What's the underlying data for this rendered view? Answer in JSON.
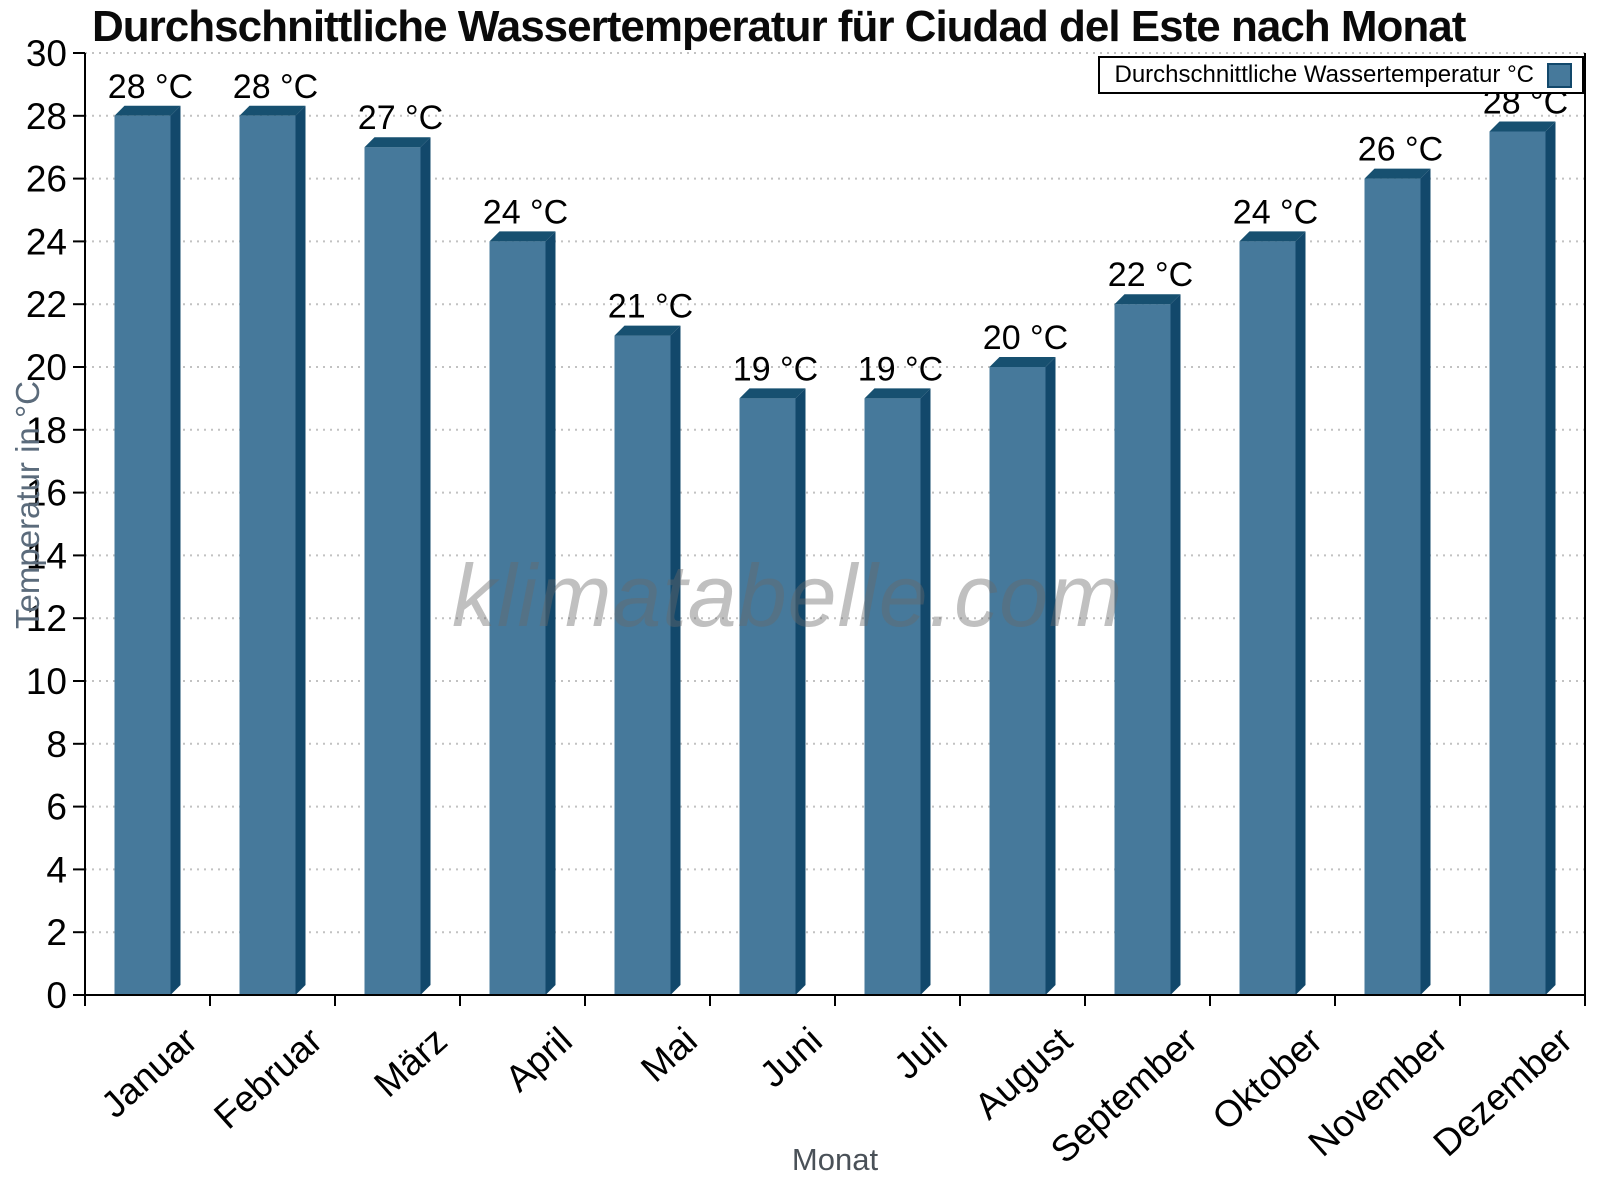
{
  "chart_data": {
    "type": "bar",
    "title": "Durchschnittliche Wassertemperatur für Ciudad del Este nach Monat",
    "xlabel": "Monat",
    "ylabel": "Temperatur in °C",
    "legend": "Durchschnittliche Wassertemperatur °C",
    "legend_position": "top-right",
    "watermark": "klimatabelle.com",
    "categories": [
      "Januar",
      "Februar",
      "März",
      "April",
      "Mai",
      "Juni",
      "Juli",
      "August",
      "September",
      "Oktober",
      "November",
      "Dezember"
    ],
    "values": [
      28,
      28,
      27,
      24,
      21,
      19,
      19,
      20,
      22,
      24,
      26,
      28
    ],
    "plotted_values": [
      28,
      28,
      27,
      24,
      21,
      19,
      19,
      20,
      22,
      24,
      26,
      27.5
    ],
    "value_label_suffix": " °C",
    "ylim": [
      0,
      30
    ],
    "ytick_step": 2,
    "grid": "dotted horizontal gridlines at every y tick",
    "bar_style": "pseudo-3d",
    "colors": {
      "bar_face": "#46799B",
      "bar_side": "#12486B",
      "bar_top": "#175070",
      "gridline": "#c2c2c2",
      "axis": "#000000",
      "tick_text": "#000000",
      "y_axis_title": "#5b6b7b",
      "x_axis_title": "#4a5158"
    }
  }
}
